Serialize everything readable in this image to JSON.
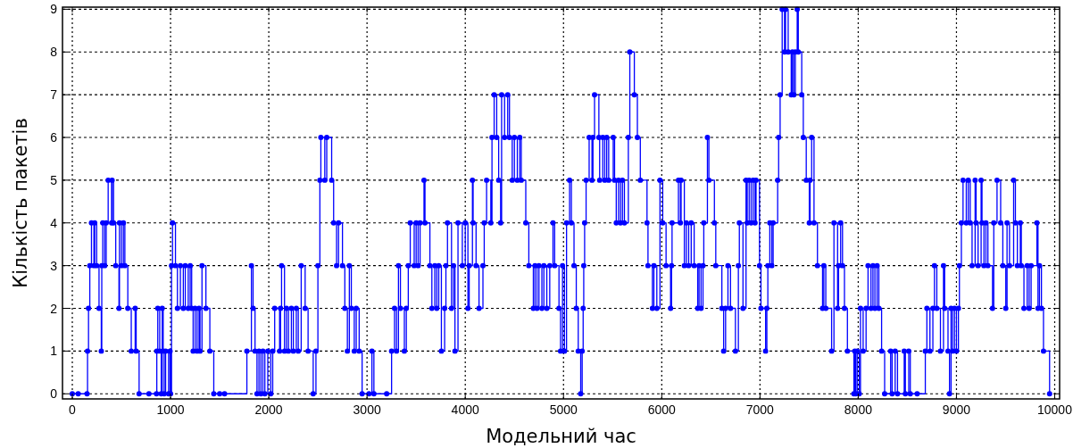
{
  "chart_data": {
    "type": "step",
    "xlabel": "Модельний час",
    "ylabel": "Кількість пакетів",
    "xlim": [
      -100,
      10050
    ],
    "ylim": [
      -0.12,
      9.05
    ],
    "xticks": [
      0,
      1000,
      2000,
      3000,
      4000,
      5000,
      6000,
      7000,
      8000,
      9000,
      10000
    ],
    "yticks": [
      0,
      1,
      2,
      3,
      4,
      5,
      6,
      7,
      8,
      9
    ],
    "grid": true,
    "marker": "circle",
    "line_style": "solid",
    "series": [
      {
        "color": "#0000ff",
        "x": [
          0,
          60,
          150,
          155,
          165,
          178,
          195,
          220,
          228,
          248,
          272,
          295,
          300,
          310,
          330,
          345,
          365,
          400,
          405,
          420,
          442,
          475,
          480,
          500,
          520,
          535,
          565,
          600,
          640,
          650,
          680,
          780,
          857,
          860,
          870,
          890,
          905,
          915,
          925,
          935,
          950,
          980,
          995,
          1000,
          1010,
          1020,
          1050,
          1070,
          1100,
          1130,
          1150,
          1180,
          1200,
          1215,
          1230,
          1250,
          1270,
          1290,
          1300,
          1320,
          1360,
          1400,
          1440,
          1500,
          1550,
          1777,
          1823,
          1840,
          1860,
          1880,
          1900,
          1920,
          1940,
          1960,
          1990,
          2020,
          2040,
          2060,
          2110,
          2120,
          2130,
          2160,
          2180,
          2200,
          2230,
          2250,
          2280,
          2300,
          2330,
          2370,
          2400,
          2452,
          2480,
          2500,
          2520,
          2530,
          2570,
          2590,
          2640,
          2660,
          2690,
          2710,
          2750,
          2774,
          2800,
          2820,
          2840,
          2870,
          2890,
          2920,
          2950,
          3020,
          3050,
          3070,
          3200,
          3250,
          3280,
          3300,
          3320,
          3340,
          3380,
          3400,
          3420,
          3440,
          3480,
          3500,
          3520,
          3540,
          3580,
          3590,
          3640,
          3660,
          3690,
          3710,
          3730,
          3757,
          3790,
          3803,
          3819,
          3860,
          3880,
          3895,
          3926,
          3970,
          4000,
          4027,
          4040,
          4073,
          4080,
          4110,
          4140,
          4180,
          4193,
          4217,
          4260,
          4272,
          4294,
          4320,
          4340,
          4360,
          4370,
          4400,
          4432,
          4450,
          4478,
          4500,
          4530,
          4555,
          4570,
          4616,
          4647,
          4693,
          4710,
          4730,
          4750,
          4780,
          4800,
          4830,
          4860,
          4893,
          4910,
          4954,
          4970,
          4990,
          5010,
          5031,
          5062,
          5080,
          5107,
          5130,
          5150,
          5175,
          5190,
          5200,
          5206,
          5215,
          5230,
          5261,
          5290,
          5300,
          5316,
          5360,
          5368,
          5400,
          5420,
          5440,
          5460,
          5506,
          5520,
          5537,
          5560,
          5580,
          5600,
          5620,
          5660,
          5675,
          5721,
          5752,
          5782,
          5850,
          5860,
          5905,
          5920,
          5950,
          5982,
          6010,
          6044,
          6090,
          6100,
          6105,
          6170,
          6190,
          6197,
          6230,
          6250,
          6274,
          6300,
          6330,
          6366,
          6380,
          6400,
          6420,
          6428,
          6465,
          6480,
          6536,
          6550,
          6612,
          6630,
          6650,
          6674,
          6700,
          6750,
          6780,
          6790,
          6827,
          6858,
          6870,
          6890,
          6910,
          6930,
          6950,
          6960,
          6995,
          7010,
          7057,
          7070,
          7080,
          7100,
          7120,
          7134,
          7180,
          7190,
          7205,
          7226,
          7250,
          7260,
          7287,
          7318,
          7330,
          7345,
          7360,
          7379,
          7390,
          7425,
          7441,
          7471,
          7502,
          7510,
          7526,
          7550,
          7585,
          7637,
          7650,
          7670,
          7729,
          7753,
          7790,
          7800,
          7821,
          7840,
          7860,
          7890,
          7956,
          7965,
          7975,
          7990,
          8010,
          8023,
          8050,
          8080,
          8100,
          8130,
          8150,
          8170,
          8192,
          8210,
          8238,
          8269,
          8330,
          8345,
          8376,
          8400,
          8468,
          8480,
          8514,
          8530,
          8600,
          8683,
          8699,
          8730,
          8760,
          8776,
          8800,
          8837,
          8868,
          8880,
          8914,
          8929,
          8945,
          8960,
          8980,
          9000,
          9020,
          9030,
          9050,
          9067,
          9100,
          9120,
          9140,
          9159,
          9190,
          9200,
          9220,
          9251,
          9260,
          9280,
          9300,
          9320,
          9367,
          9380,
          9413,
          9450,
          9472,
          9502,
          9515,
          9540,
          9582,
          9600,
          9620,
          9650,
          9660,
          9687,
          9720,
          9740,
          9760,
          9819,
          9830,
          9845,
          9865,
          9886,
          9948
        ],
        "values": [
          0,
          0,
          0,
          1,
          2,
          3,
          4,
          3,
          4,
          3,
          2,
          1,
          3,
          4,
          3,
          4,
          5,
          4,
          5,
          4,
          3,
          2,
          4,
          3,
          4,
          3,
          2,
          1,
          2,
          1,
          0,
          0,
          0,
          1,
          2,
          1,
          0,
          2,
          1,
          0,
          1,
          0,
          1,
          0,
          3,
          4,
          3,
          2,
          3,
          2,
          3,
          2,
          3,
          2,
          1,
          2,
          1,
          2,
          1,
          3,
          2,
          1,
          0,
          0,
          0,
          1,
          3,
          2,
          1,
          0,
          1,
          0,
          1,
          0,
          1,
          0,
          1,
          2,
          1,
          2,
          3,
          1,
          2,
          1,
          2,
          1,
          2,
          1,
          3,
          2,
          1,
          0,
          1,
          3,
          5,
          6,
          5,
          6,
          5,
          4,
          3,
          4,
          3,
          2,
          1,
          3,
          2,
          1,
          2,
          1,
          0,
          0,
          1,
          0,
          0,
          1,
          2,
          1,
          3,
          2,
          1,
          2,
          3,
          4,
          3,
          4,
          3,
          4,
          5,
          4,
          3,
          2,
          3,
          2,
          3,
          1,
          2,
          3,
          4,
          2,
          3,
          1,
          4,
          3,
          4,
          2,
          3,
          5,
          4,
          3,
          2,
          3,
          4,
          5,
          4,
          6,
          7,
          6,
          5,
          4,
          7,
          6,
          7,
          6,
          5,
          6,
          5,
          6,
          5,
          4,
          3,
          2,
          3,
          2,
          3,
          2,
          3,
          2,
          3,
          4,
          3,
          2,
          1,
          3,
          1,
          4,
          5,
          4,
          3,
          2,
          1,
          0,
          1,
          2,
          3,
          4,
          5,
          6,
          5,
          6,
          7,
          6,
          5,
          6,
          5,
          6,
          5,
          6,
          5,
          4,
          5,
          4,
          5,
          4,
          6,
          8,
          7,
          6,
          5,
          4,
          3,
          2,
          3,
          2,
          5,
          4,
          3,
          2,
          3,
          4,
          5,
          4,
          5,
          3,
          4,
          3,
          4,
          3,
          2,
          3,
          2,
          3,
          4,
          6,
          5,
          4,
          3,
          2,
          1,
          2,
          3,
          2,
          1,
          3,
          4,
          2,
          5,
          4,
          5,
          4,
          5,
          4,
          5,
          3,
          2,
          1,
          2,
          3,
          4,
          3,
          4,
          5,
          6,
          7,
          9,
          8,
          9,
          8,
          7,
          8,
          7,
          8,
          9,
          8,
          7,
          6,
          5,
          4,
          5,
          6,
          4,
          3,
          2,
          3,
          2,
          1,
          4,
          2,
          3,
          4,
          3,
          2,
          1,
          0,
          1,
          0,
          1,
          0,
          2,
          1,
          2,
          3,
          2,
          3,
          2,
          3,
          2,
          1,
          0,
          1,
          0,
          1,
          0,
          1,
          0,
          1,
          0,
          0,
          1,
          2,
          1,
          2,
          3,
          2,
          1,
          3,
          2,
          1,
          0,
          2,
          1,
          2,
          1,
          2,
          3,
          4,
          5,
          4,
          5,
          4,
          3,
          5,
          4,
          3,
          5,
          4,
          3,
          4,
          3,
          2,
          4,
          5,
          4,
          3,
          2,
          4,
          3,
          5,
          4,
          3,
          4,
          3,
          2,
          3,
          2,
          3,
          4,
          2,
          3,
          2,
          1,
          0
        ]
      }
    ]
  }
}
